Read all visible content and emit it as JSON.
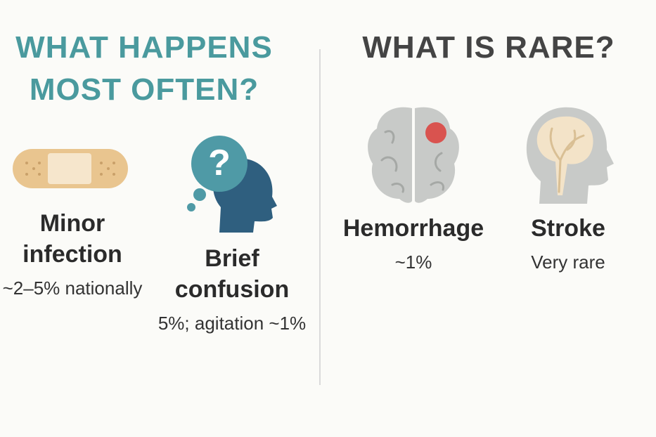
{
  "sections": [
    {
      "title": "WHAT HAPPENS MOST OFTEN?",
      "items": [
        {
          "title": "Minor infection",
          "description": "~2–5% nationally"
        },
        {
          "title": "Brief confusion",
          "description": "5%; agitation ~1%"
        }
      ]
    },
    {
      "title": "WHAT IS RARE?",
      "items": [
        {
          "title": "Hemorrhage",
          "description": "~1%"
        },
        {
          "title": "Stroke",
          "description": "Very rare"
        }
      ]
    }
  ]
}
